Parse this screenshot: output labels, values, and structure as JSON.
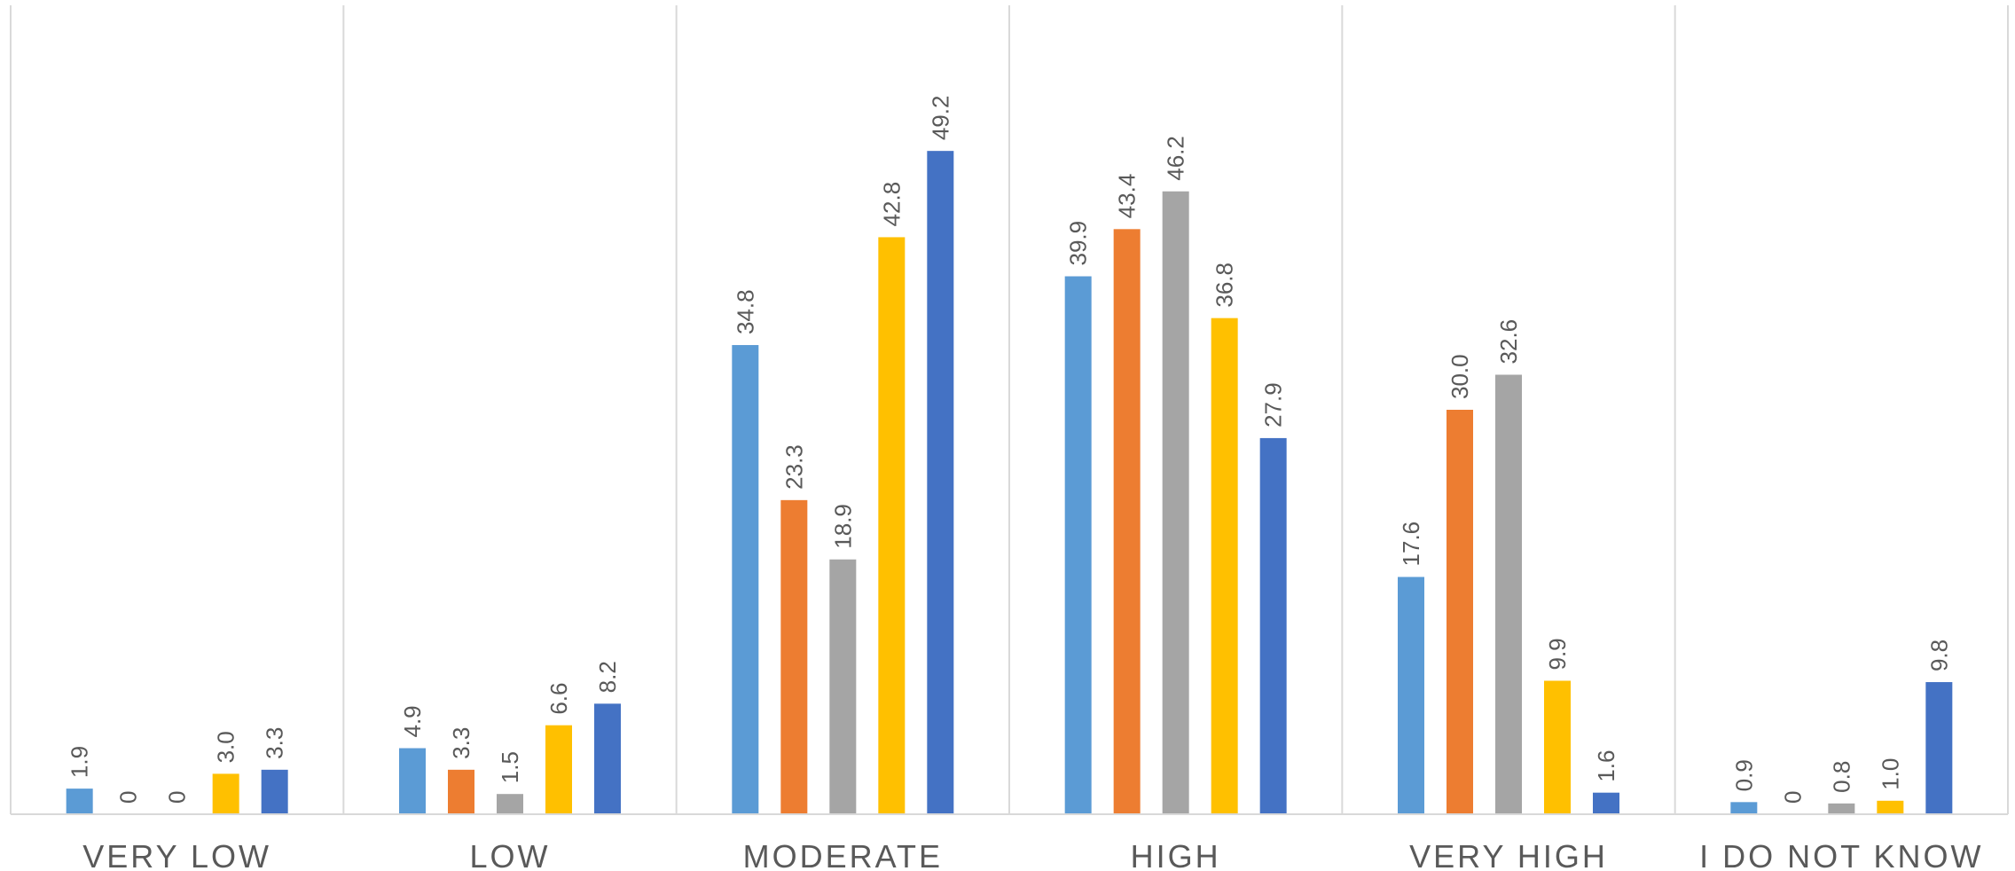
{
  "chart_data": {
    "type": "bar",
    "title": "",
    "xlabel": "",
    "ylabel": "",
    "ylim": [
      0,
      55
    ],
    "grid": false,
    "legend": "none",
    "categories": [
      "VERY LOW",
      "LOW",
      "MODERATE",
      "HIGH",
      "VERY HIGH",
      "I DO NOT KNOW"
    ],
    "series": [
      {
        "color": "#5b9bd5",
        "values": [
          1.9,
          4.9,
          34.8,
          39.9,
          17.6,
          0.9
        ],
        "labels": [
          "1.9",
          "4.9",
          "34.8",
          "39.9",
          "17.6",
          "0.9"
        ]
      },
      {
        "color": "#ed7d31",
        "values": [
          0,
          3.3,
          23.3,
          43.4,
          30.0,
          0
        ],
        "labels": [
          "0",
          "3.3",
          "23.3",
          "43.4",
          "30.0",
          "0"
        ]
      },
      {
        "color": "#a5a5a5",
        "values": [
          0,
          1.5,
          18.9,
          46.2,
          32.6,
          0.8
        ],
        "labels": [
          "0",
          "1.5",
          "18.9",
          "46.2",
          "32.6",
          "0.8"
        ]
      },
      {
        "color": "#ffc000",
        "values": [
          3.0,
          6.6,
          42.8,
          36.8,
          9.9,
          1.0
        ],
        "labels": [
          "3.0",
          "6.6",
          "42.8",
          "36.8",
          "9.9",
          "1.0"
        ]
      },
      {
        "color": "#4472c4",
        "values": [
          3.3,
          8.2,
          49.2,
          27.9,
          1.6,
          9.8
        ],
        "labels": [
          "3.3",
          "8.2",
          "49.2",
          "27.9",
          "1.6",
          "9.8"
        ]
      }
    ]
  }
}
